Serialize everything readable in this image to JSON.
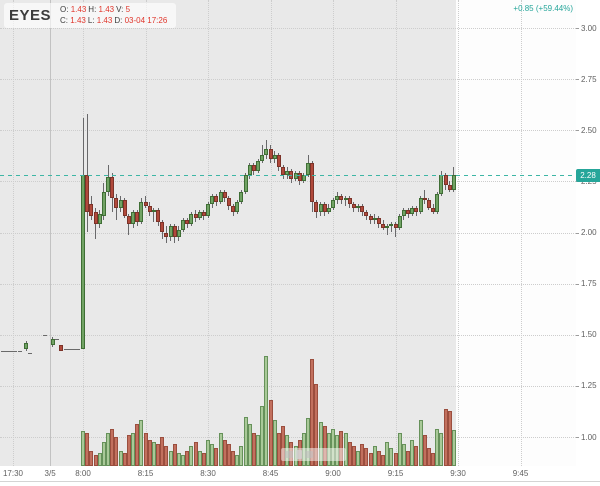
{
  "legend": {
    "symbol": "EYES",
    "o_label": "O:",
    "o_val": "1.43",
    "h_label": "H:",
    "h_val": "1.43",
    "v_label": "V:",
    "v_val": "5",
    "c_label": "C:",
    "c_val": "1.43",
    "l_label": "L:",
    "l_val": "1.43",
    "d_label": "D:",
    "d_val": "03-04 17:26"
  },
  "change": {
    "text": "+0.85 (+59.44%)"
  },
  "chart_data": {
    "type": "candlestick_with_volume",
    "symbol": "EYES",
    "interval_minutes": 1,
    "current_price": {
      "label": "2.28",
      "value": 2.28
    },
    "ylim": [
      1.0,
      3.0
    ],
    "grid": true,
    "y_ticks": [
      {
        "label": "3.00",
        "price": 3.0
      },
      {
        "label": "2.75",
        "price": 2.75
      },
      {
        "label": "2.50",
        "price": 2.5
      },
      {
        "label": "2.25",
        "price": 2.25
      },
      {
        "label": "2.00",
        "price": 2.0
      },
      {
        "label": "1.75",
        "price": 1.75
      },
      {
        "label": "1.50",
        "price": 1.5
      },
      {
        "label": "1.25",
        "price": 1.25
      },
      {
        "label": "1.00",
        "price": 1.0
      }
    ],
    "x_ticks": [
      {
        "label": "17:30",
        "m": -16.8
      },
      {
        "label": "3/5",
        "m": -7.9,
        "session_break": true
      },
      {
        "label": "8:00",
        "m": 0
      },
      {
        "label": "8:15",
        "m": 15
      },
      {
        "label": "8:30",
        "m": 30
      },
      {
        "label": "8:45",
        "m": 45
      },
      {
        "label": "9:00",
        "m": 60
      },
      {
        "label": "9:15",
        "m": 75
      },
      {
        "label": "9:30",
        "m": 90
      },
      {
        "label": "9:45",
        "m": 105
      }
    ],
    "columns": [
      "minutes_from_0800",
      "open",
      "high",
      "low",
      "close",
      "volume"
    ],
    "candles": [
      [
        -19.2,
        1.42,
        1.42,
        1.42,
        1.42,
        0
      ],
      [
        -18.2,
        1.42,
        1.42,
        1.42,
        1.42,
        0
      ],
      [
        -17.2,
        1.42,
        1.42,
        1.42,
        1.42,
        0
      ],
      [
        -16.2,
        1.42,
        1.42,
        1.42,
        1.42,
        0
      ],
      [
        -15.2,
        1.42,
        1.42,
        1.42,
        1.42,
        0
      ],
      [
        -13.6,
        1.43,
        1.47,
        1.42,
        1.46,
        0
      ],
      [
        -12.6,
        1.41,
        1.41,
        1.41,
        1.41,
        0
      ],
      [
        -9.1,
        1.5,
        1.5,
        1.5,
        1.5,
        0
      ],
      [
        -7.2,
        1.45,
        1.49,
        1.44,
        1.48,
        0
      ],
      [
        -6.2,
        1.48,
        1.48,
        1.48,
        1.48,
        0
      ],
      [
        -5.2,
        1.45,
        1.45,
        1.42,
        1.42,
        0
      ],
      [
        -4.0,
        1.43,
        1.43,
        1.43,
        1.43,
        0
      ],
      [
        -3.1,
        1.43,
        1.43,
        1.43,
        1.43,
        0
      ],
      [
        -2.2,
        1.43,
        1.43,
        1.43,
        1.43,
        0
      ],
      [
        -1.2,
        1.43,
        1.43,
        1.43,
        1.43,
        0
      ],
      [
        0,
        1.43,
        2.56,
        1.43,
        2.28,
        32
      ],
      [
        1,
        2.28,
        2.58,
        2.0,
        2.1,
        30
      ],
      [
        2,
        2.14,
        2.18,
        2.06,
        2.08,
        14
      ],
      [
        3,
        2.1,
        2.12,
        1.97,
        2.04,
        10
      ],
      [
        4,
        2.04,
        2.11,
        2.02,
        2.09,
        12
      ],
      [
        5,
        2.08,
        2.24,
        2.06,
        2.2,
        22
      ],
      [
        6,
        2.2,
        2.33,
        2.18,
        2.27,
        30
      ],
      [
        7,
        2.27,
        2.29,
        2.1,
        2.17,
        34
      ],
      [
        8,
        2.17,
        2.19,
        2.06,
        2.12,
        26
      ],
      [
        9,
        2.12,
        2.18,
        2.1,
        2.16,
        14
      ],
      [
        10,
        2.16,
        2.17,
        2.07,
        2.08,
        12
      ],
      [
        11,
        2.08,
        2.09,
        1.99,
        2.04,
        28
      ],
      [
        12,
        2.04,
        2.11,
        2.02,
        2.1,
        30
      ],
      [
        13,
        2.1,
        2.11,
        2.03,
        2.05,
        38
      ],
      [
        14,
        2.05,
        2.17,
        2.04,
        2.15,
        42
      ],
      [
        15,
        2.15,
        2.18,
        2.12,
        2.13,
        30
      ],
      [
        16,
        2.13,
        2.15,
        2.08,
        2.1,
        24
      ],
      [
        17,
        2.1,
        2.12,
        2.05,
        2.11,
        22
      ],
      [
        18,
        2.11,
        2.12,
        2.03,
        2.05,
        20
      ],
      [
        19,
        2.05,
        2.06,
        1.97,
        2.0,
        26
      ],
      [
        20,
        2.0,
        2.03,
        1.95,
        1.98,
        18
      ],
      [
        21,
        1.98,
        2.04,
        1.96,
        2.03,
        14
      ],
      [
        22,
        2.03,
        2.04,
        1.95,
        1.98,
        20
      ],
      [
        23,
        1.98,
        2.03,
        1.96,
        2.01,
        12
      ],
      [
        24,
        2.01,
        2.07,
        2.0,
        2.06,
        10
      ],
      [
        25,
        2.06,
        2.07,
        2.02,
        2.04,
        14
      ],
      [
        26,
        2.04,
        2.1,
        2.03,
        2.09,
        18
      ],
      [
        27,
        2.09,
        2.11,
        2.05,
        2.07,
        22
      ],
      [
        28,
        2.07,
        2.11,
        2.06,
        2.1,
        14
      ],
      [
        29,
        2.1,
        2.11,
        2.06,
        2.08,
        12
      ],
      [
        30,
        2.08,
        2.15,
        2.07,
        2.14,
        24
      ],
      [
        31,
        2.14,
        2.19,
        2.12,
        2.18,
        20
      ],
      [
        32,
        2.18,
        2.19,
        2.13,
        2.15,
        16
      ],
      [
        33,
        2.15,
        2.21,
        2.14,
        2.2,
        30
      ],
      [
        34,
        2.2,
        2.21,
        2.15,
        2.17,
        24
      ],
      [
        35,
        2.17,
        2.18,
        2.11,
        2.13,
        20
      ],
      [
        36,
        2.13,
        2.14,
        2.08,
        2.1,
        14
      ],
      [
        37,
        2.1,
        2.16,
        2.09,
        2.15,
        10
      ],
      [
        38,
        2.15,
        2.21,
        2.14,
        2.2,
        18
      ],
      [
        39,
        2.2,
        2.29,
        2.19,
        2.28,
        45
      ],
      [
        40,
        2.28,
        2.34,
        2.26,
        2.33,
        38
      ],
      [
        41,
        2.33,
        2.34,
        2.28,
        2.3,
        30
      ],
      [
        42,
        2.3,
        2.36,
        2.29,
        2.35,
        28
      ],
      [
        43,
        2.35,
        2.43,
        2.34,
        2.38,
        55
      ],
      [
        44,
        2.38,
        2.45,
        2.36,
        2.41,
        100
      ],
      [
        45,
        2.41,
        2.43,
        2.34,
        2.36,
        60
      ],
      [
        46,
        2.36,
        2.4,
        2.34,
        2.38,
        42
      ],
      [
        47,
        2.38,
        2.39,
        2.3,
        2.32,
        30
      ],
      [
        48,
        2.32,
        2.33,
        2.26,
        2.28,
        36
      ],
      [
        49,
        2.28,
        2.32,
        2.26,
        2.3,
        28
      ],
      [
        50,
        2.3,
        2.31,
        2.24,
        2.26,
        22
      ],
      [
        51,
        2.26,
        2.3,
        2.25,
        2.29,
        18
      ],
      [
        52,
        2.29,
        2.3,
        2.23,
        2.25,
        24
      ],
      [
        53,
        2.25,
        2.29,
        2.24,
        2.28,
        30
      ],
      [
        54,
        2.28,
        2.38,
        2.27,
        2.34,
        44
      ],
      [
        55,
        2.34,
        2.35,
        2.1,
        2.15,
        97
      ],
      [
        56,
        2.15,
        2.16,
        2.07,
        2.1,
        75
      ],
      [
        57,
        2.1,
        2.15,
        2.08,
        2.14,
        40
      ],
      [
        58,
        2.14,
        2.15,
        2.08,
        2.1,
        36
      ],
      [
        59,
        2.1,
        2.14,
        2.09,
        2.12,
        30
      ],
      [
        60,
        2.12,
        2.17,
        2.11,
        2.16,
        34
      ],
      [
        61,
        2.16,
        2.2,
        2.14,
        2.18,
        28
      ],
      [
        62,
        2.18,
        2.19,
        2.14,
        2.16,
        32
      ],
      [
        63,
        2.16,
        2.18,
        2.13,
        2.17,
        30
      ],
      [
        64,
        2.17,
        2.18,
        2.12,
        2.14,
        22
      ],
      [
        65,
        2.14,
        2.15,
        2.1,
        2.12,
        18
      ],
      [
        66,
        2.12,
        2.14,
        2.1,
        2.13,
        14
      ],
      [
        67,
        2.13,
        2.14,
        2.08,
        2.1,
        20
      ],
      [
        68,
        2.1,
        2.11,
        2.06,
        2.08,
        16
      ],
      [
        69,
        2.08,
        2.09,
        2.04,
        2.06,
        12
      ],
      [
        70,
        2.06,
        2.09,
        2.04,
        2.07,
        18
      ],
      [
        71,
        2.07,
        2.08,
        2.02,
        2.04,
        14
      ],
      [
        72,
        2.04,
        2.06,
        2.01,
        2.02,
        10
      ],
      [
        73,
        2.02,
        2.04,
        1.99,
        2.03,
        22
      ],
      [
        74,
        2.03,
        2.05,
        2.0,
        2.04,
        16
      ],
      [
        75,
        2.04,
        2.05,
        1.98,
        2.02,
        12
      ],
      [
        76,
        2.02,
        2.09,
        2.01,
        2.08,
        30
      ],
      [
        77,
        2.08,
        2.12,
        2.06,
        2.11,
        20
      ],
      [
        78,
        2.11,
        2.12,
        2.07,
        2.09,
        14
      ],
      [
        79,
        2.09,
        2.13,
        2.08,
        2.12,
        24
      ],
      [
        80,
        2.12,
        2.13,
        2.08,
        2.1,
        18
      ],
      [
        81,
        2.1,
        2.18,
        2.09,
        2.17,
        42
      ],
      [
        82,
        2.17,
        2.21,
        2.14,
        2.16,
        28
      ],
      [
        83,
        2.16,
        2.17,
        2.11,
        2.12,
        16
      ],
      [
        84,
        2.12,
        2.14,
        2.09,
        2.1,
        12
      ],
      [
        85,
        2.1,
        2.2,
        2.09,
        2.19,
        34
      ],
      [
        86,
        2.19,
        2.3,
        2.18,
        2.28,
        30
      ],
      [
        87,
        2.28,
        2.29,
        2.21,
        2.23,
        52
      ],
      [
        88,
        2.23,
        2.25,
        2.2,
        2.21,
        50
      ],
      [
        89,
        2.21,
        2.32,
        2.2,
        2.28,
        33
      ]
    ],
    "colors": {
      "up": "#71a364",
      "up_border": "#3f6e35",
      "down": "#b1493b",
      "down_border": "#7c3329",
      "vol_up": "#a9c998",
      "vol_down": "#c2705e",
      "wick": "#69696b",
      "accent": "#26a69a",
      "value_red": "#e0362c",
      "bg_past": "#e9e9e9",
      "bg_future": "#fdfdfd"
    }
  }
}
